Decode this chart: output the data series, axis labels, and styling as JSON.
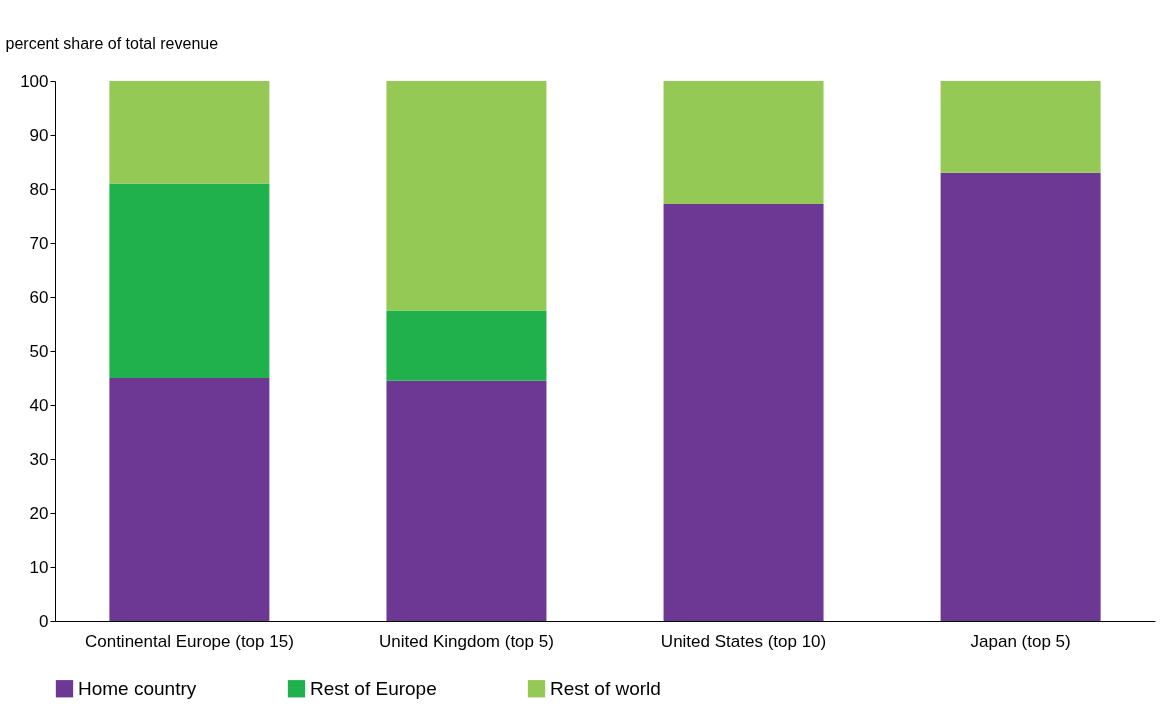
{
  "chart_data": {
    "type": "bar",
    "stacked": true,
    "ylabel": "percent share of total revenue",
    "categories": [
      "Continental Europe (top 15)",
      "United Kingdom (top 5)",
      "United States (top 10)",
      "Japan (top 5)"
    ],
    "series": [
      {
        "name": "Home country",
        "color": "#6c3894",
        "values": [
          45,
          44.5,
          77.2,
          83
        ]
      },
      {
        "name": "Rest of Europe",
        "color": "#21b14c",
        "values": [
          36,
          13,
          null,
          null
        ]
      },
      {
        "name": "Rest of world",
        "color": "#95c955",
        "values": [
          19,
          42.5,
          22.8,
          17
        ]
      }
    ],
    "ylim": [
      0,
      100
    ],
    "yticks": [
      0,
      10,
      20,
      30,
      40,
      50,
      60,
      70,
      80,
      90,
      100
    ],
    "grid": false,
    "legend": "bottom"
  }
}
